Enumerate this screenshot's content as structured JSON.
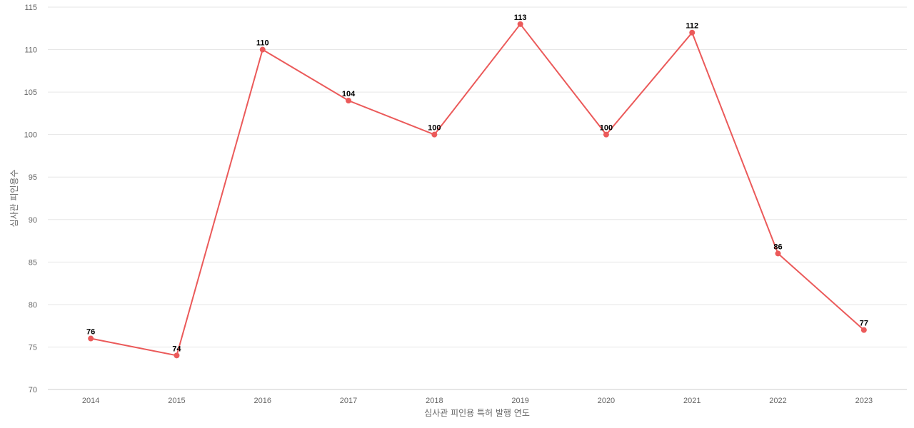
{
  "chart_data": {
    "type": "line",
    "title": "",
    "xlabel": "심사관 피인용 특허 발행 연도",
    "ylabel": "심사관 피인용수",
    "categories": [
      "2014",
      "2015",
      "2016",
      "2017",
      "2018",
      "2019",
      "2020",
      "2021",
      "2022",
      "2023"
    ],
    "series": [
      {
        "values": [
          76,
          74,
          110,
          104,
          100,
          113,
          100,
          112,
          86,
          77
        ]
      }
    ],
    "ylim": [
      70,
      115
    ],
    "yticks": [
      70,
      75,
      80,
      85,
      90,
      95,
      100,
      105,
      110,
      115
    ],
    "grid": true,
    "data_labels": true,
    "line_color": "#eb5a5a"
  }
}
